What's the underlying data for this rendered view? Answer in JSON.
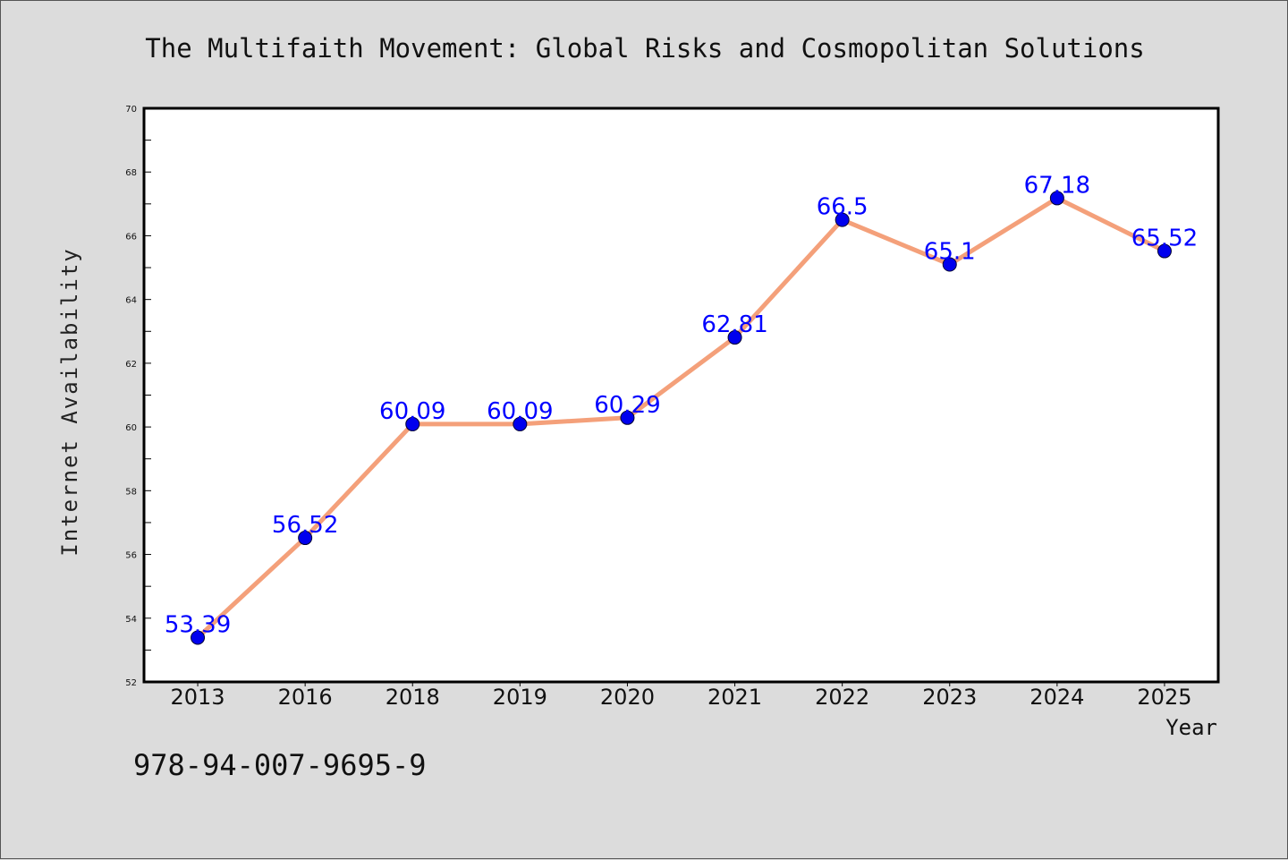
{
  "chart_data": {
    "type": "line",
    "title": "The Multifaith Movement: Global Risks and Cosmopolitan Solutions",
    "xlabel": "Year",
    "ylabel": "Internet Availability",
    "categories": [
      "2013",
      "2016",
      "2018",
      "2019",
      "2020",
      "2021",
      "2022",
      "2023",
      "2024",
      "2025"
    ],
    "series": [
      {
        "values": [
          53.39,
          56.52,
          60.09,
          60.09,
          60.29,
          62.81,
          66.5,
          65.1,
          67.18,
          65.52
        ],
        "labels": [
          "53.39",
          "56.52",
          "60.09",
          "60.09",
          "60.29",
          "62.81",
          "66.5",
          "65.1",
          "67.18",
          "65.52"
        ],
        "line_color": "#f4a07a",
        "marker_color": "#0000ee",
        "label_color": "#0000ff"
      }
    ],
    "ylim": [
      52,
      70
    ],
    "yticks": [
      "52",
      "54",
      "56",
      "58",
      "60",
      "62",
      "64",
      "66",
      "68",
      "70"
    ],
    "grid": false,
    "legend": "none"
  },
  "footer": {
    "isbn": "978-94-007-9695-9"
  },
  "colors": {
    "background": "#dcdcdc",
    "plot_background": "#ffffff"
  }
}
